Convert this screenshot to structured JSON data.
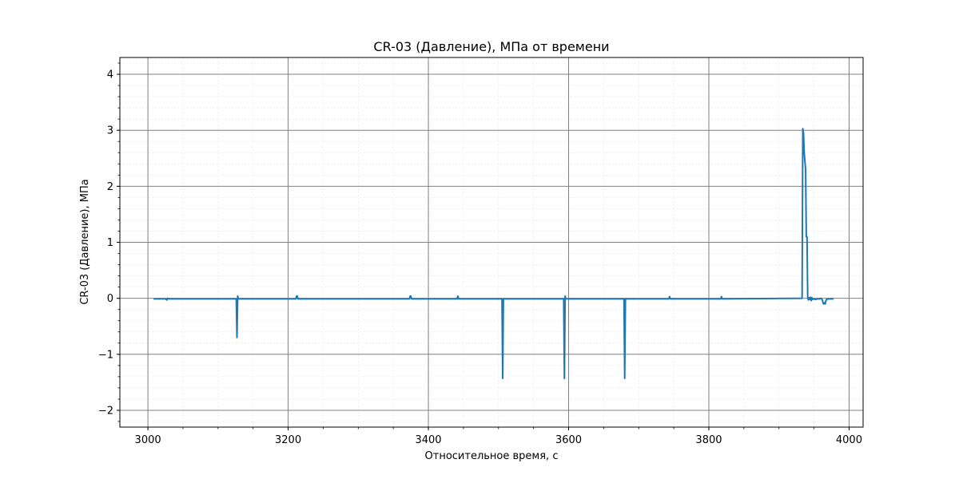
{
  "chart_data": {
    "type": "line",
    "title": "CR-03 (Давление), МПа от времени",
    "xlabel": "Относительное время, с",
    "ylabel": "CR-03 (Давление), МПа",
    "xlim": [
      2960,
      4020
    ],
    "ylim": [
      -2.3,
      4.3
    ],
    "xticks": [
      3000,
      3200,
      3400,
      3600,
      3800,
      4000
    ],
    "yticks": [
      -2,
      -1,
      0,
      1,
      2,
      3,
      4
    ],
    "xtick_labels": [
      "3000",
      "3200",
      "3400",
      "3600",
      "3800",
      "4000"
    ],
    "ytick_labels": [
      "−2",
      "−1",
      "0",
      "1",
      "2",
      "3",
      "4"
    ],
    "x_minor_step": 50,
    "y_minor_step": 0.2,
    "grid": true,
    "minor_grid": true,
    "series": [
      {
        "color": "#1f77b4",
        "x": [
          3008,
          3025,
          3027,
          3028,
          3030,
          3126,
          3127,
          3128,
          3129,
          3130,
          3211,
          3212,
          3213,
          3214,
          3373,
          3374,
          3375,
          3376,
          3441,
          3442,
          3443,
          3505,
          3506,
          3507,
          3508,
          3593,
          3594,
          3595,
          3596,
          3679,
          3680,
          3681,
          3682,
          3743,
          3744,
          3745,
          3817,
          3818,
          3819,
          3933,
          3934,
          3935,
          3936,
          3937,
          3938,
          3939,
          3940,
          3941,
          3942,
          3943,
          3944,
          3945,
          3946,
          3947,
          3948,
          3950,
          3952,
          3955,
          3958,
          3960,
          3962,
          3963,
          3964,
          3965,
          3966,
          3967,
          3968,
          3970,
          3975,
          3978
        ],
        "y": [
          -0.01,
          -0.01,
          -0.03,
          0.0,
          -0.01,
          -0.01,
          -0.7,
          0.04,
          -0.01,
          -0.01,
          -0.01,
          0.04,
          0.04,
          -0.01,
          -0.01,
          0.04,
          0.04,
          -0.01,
          -0.01,
          0.04,
          -0.01,
          -0.01,
          -1.43,
          -0.01,
          -0.01,
          -0.01,
          -1.43,
          0.04,
          -0.01,
          -0.01,
          -1.43,
          -0.01,
          -0.01,
          -0.01,
          0.03,
          -0.01,
          -0.01,
          0.03,
          -0.01,
          0.0,
          3.03,
          2.95,
          2.6,
          2.45,
          2.3,
          1.1,
          1.1,
          0.02,
          -0.03,
          0.01,
          -0.02,
          0.02,
          -0.04,
          0.01,
          -0.02,
          -0.01,
          -0.02,
          -0.01,
          -0.01,
          0.0,
          -0.03,
          -0.09,
          -0.1,
          -0.08,
          -0.1,
          -0.04,
          -0.02,
          -0.01,
          -0.01,
          -0.01
        ]
      }
    ]
  }
}
